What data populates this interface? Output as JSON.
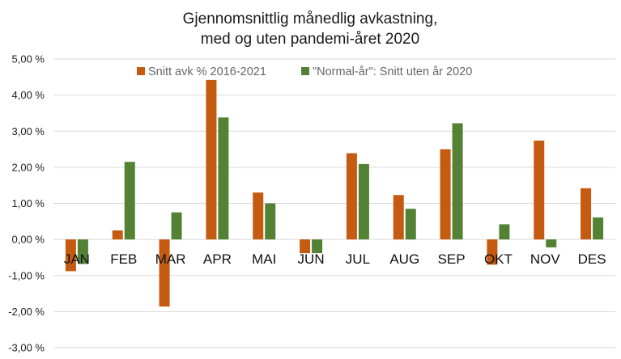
{
  "chart_data": {
    "type": "bar",
    "title_lines": [
      "Gjennomsnittlig månedlig avkastning,",
      "med og uten pandemi-året 2020"
    ],
    "categories": [
      "JAN",
      "FEB",
      "MAR",
      "APR",
      "MAI",
      "JUN",
      "JUL",
      "AUG",
      "SEP",
      "OKT",
      "NOV",
      "DES"
    ],
    "series": [
      {
        "name": "Snitt avk % 2016-2021",
        "color": "#c55a11",
        "values": [
          -0.88,
          0.25,
          -1.86,
          4.42,
          1.3,
          -0.38,
          2.39,
          1.23,
          2.5,
          -0.7,
          2.74,
          1.42
        ]
      },
      {
        "name": "\"Normal-år\": Snitt uten år 2020",
        "color": "#548235",
        "values": [
          -0.68,
          2.15,
          0.75,
          3.38,
          1.0,
          -0.38,
          2.09,
          0.85,
          3.22,
          0.42,
          -0.22,
          0.61
        ]
      }
    ],
    "ylim": [
      -3.0,
      5.0
    ],
    "yticks": [
      5.0,
      4.0,
      3.0,
      2.0,
      1.0,
      0.0,
      -1.0,
      -2.0,
      -3.0
    ],
    "ytick_labels": [
      "5,00 %",
      "4,00 %",
      "3,00 %",
      "2,00 %",
      "1,00 %",
      "0,00 %",
      "-1,00 %",
      "-2,00 %",
      "-3,00 %"
    ],
    "grid": true,
    "legend_position": "top"
  }
}
